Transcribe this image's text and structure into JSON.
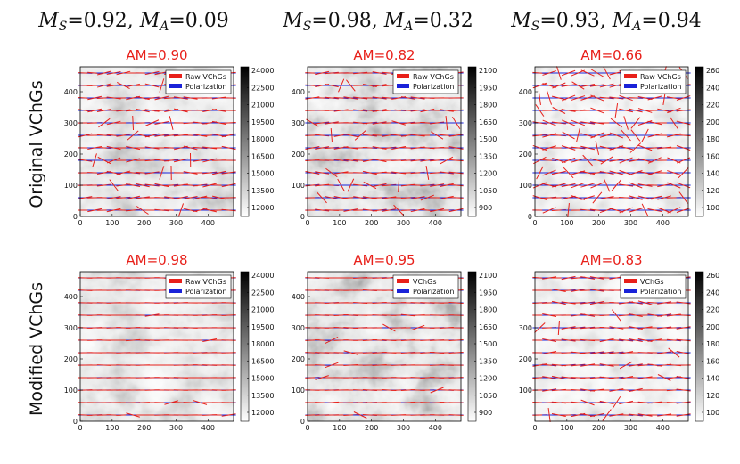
{
  "figure": {
    "column_titles": [
      {
        "ms_symbol": "M",
        "ms_sub": "S",
        "ms_value": "=0.92, ",
        "ma_symbol": "M",
        "ma_sub": "A",
        "ma_value": "=0.09"
      },
      {
        "ms_symbol": "M",
        "ms_sub": "S",
        "ms_value": "=0.98, ",
        "ma_symbol": "M",
        "ma_sub": "A",
        "ma_value": "=0.32"
      },
      {
        "ms_symbol": "M",
        "ms_sub": "S",
        "ms_value": "=0.93, ",
        "ma_symbol": "M",
        "ma_sub": "A",
        "ma_value": "=0.94"
      }
    ],
    "row_labels": [
      "Original VChGs",
      "Modified VChGs"
    ]
  },
  "chart_data": [
    {
      "type": "heatmap",
      "title": "AM=0.90",
      "x_ticks": [
        "0",
        "100",
        "200",
        "300",
        "400"
      ],
      "y_ticks": [
        "0",
        "100",
        "200",
        "300",
        "400"
      ],
      "xlim": [
        0,
        480
      ],
      "ylim": [
        0,
        480
      ],
      "colorbar_ticks": [
        "24000",
        "22500",
        "21000",
        "19500",
        "18000",
        "16500",
        "15000",
        "13500",
        "12000"
      ],
      "legend": [
        "Raw VChGs",
        "Polarization"
      ],
      "legend_placement": "top-right"
    },
    {
      "type": "heatmap",
      "title": "AM=0.82",
      "x_ticks": [
        "0",
        "100",
        "200",
        "300",
        "400"
      ],
      "y_ticks": [
        "0",
        "100",
        "200",
        "300",
        "400"
      ],
      "xlim": [
        0,
        480
      ],
      "ylim": [
        0,
        480
      ],
      "colorbar_ticks": [
        "2100",
        "1950",
        "1800",
        "1650",
        "1500",
        "1350",
        "1200",
        "1050",
        "900"
      ],
      "legend": [
        "Raw VChGs",
        "Polarization"
      ],
      "legend_placement": "top-right"
    },
    {
      "type": "heatmap",
      "title": "AM=0.66",
      "x_ticks": [
        "0",
        "100",
        "200",
        "300",
        "400"
      ],
      "y_ticks": [
        "0",
        "100",
        "200",
        "300",
        "400"
      ],
      "xlim": [
        0,
        480
      ],
      "ylim": [
        0,
        480
      ],
      "colorbar_ticks": [
        "260",
        "240",
        "220",
        "200",
        "180",
        "160",
        "140",
        "120",
        "100"
      ],
      "legend": [
        "Raw VChGs",
        "Polarization"
      ],
      "legend_placement": "top-right"
    },
    {
      "type": "heatmap",
      "title": "AM=0.98",
      "x_ticks": [
        "0",
        "100",
        "200",
        "300",
        "400"
      ],
      "y_ticks": [
        "0",
        "100",
        "200",
        "300",
        "400"
      ],
      "xlim": [
        0,
        480
      ],
      "ylim": [
        0,
        480
      ],
      "colorbar_ticks": [
        "24000",
        "22500",
        "21000",
        "19500",
        "18000",
        "16500",
        "15000",
        "13500",
        "12000"
      ],
      "legend": [
        "Raw VChGs",
        "Polarization"
      ],
      "legend_placement": "top-right"
    },
    {
      "type": "heatmap",
      "title": "AM=0.95",
      "x_ticks": [
        "0",
        "100",
        "200",
        "300",
        "400"
      ],
      "y_ticks": [
        "0",
        "100",
        "200",
        "300",
        "400"
      ],
      "xlim": [
        0,
        480
      ],
      "ylim": [
        0,
        480
      ],
      "colorbar_ticks": [
        "2100",
        "1950",
        "1800",
        "1650",
        "1500",
        "1350",
        "1200",
        "1050",
        "900"
      ],
      "legend": [
        "VChGs",
        "Polarization"
      ],
      "legend_placement": "top-right"
    },
    {
      "type": "heatmap",
      "title": "AM=0.83",
      "x_ticks": [
        "0",
        "100",
        "200",
        "300",
        "400"
      ],
      "y_ticks": [
        "300",
        "200",
        "100"
      ],
      "xlim": [
        0,
        480
      ],
      "ylim": [
        0,
        480
      ],
      "colorbar_ticks": [
        "260",
        "240",
        "220",
        "200",
        "180",
        "160",
        "140",
        "120",
        "100"
      ],
      "legend": [
        "VChGs",
        "Polarization"
      ],
      "legend_placement": "top-right"
    }
  ],
  "colors": {
    "raw_vchg": "#e8201a",
    "polarization": "#1a22d8",
    "am_text": "#e8201a"
  }
}
